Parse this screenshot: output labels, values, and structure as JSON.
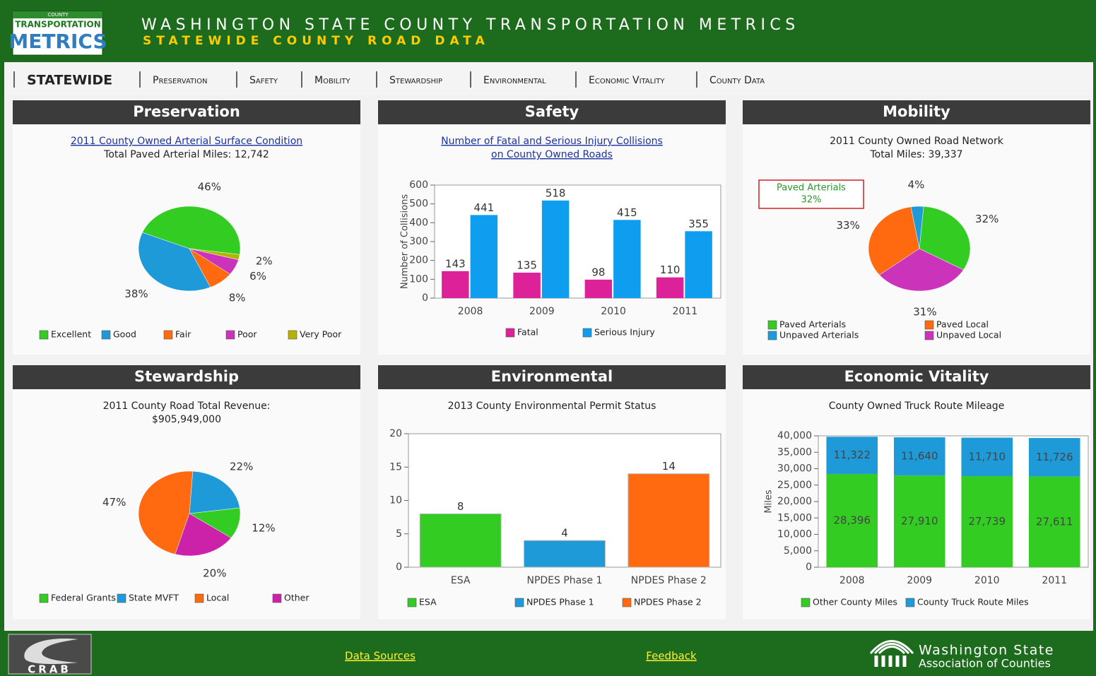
{
  "header": {
    "logo": [
      "COUNTY",
      "TRANSPORTATION",
      "METRICS"
    ],
    "title": "WASHINGTON STATE COUNTY TRANSPORTATION METRICS",
    "subtitle": "STATEWIDE COUNTY ROAD DATA"
  },
  "nav": [
    "STATEWIDE",
    "Preservation",
    "Safety",
    "Mobility",
    "Stewardship",
    "Environmental",
    "Economic Vitality",
    "County Data"
  ],
  "panels": [
    {
      "title": "Preservation",
      "chart": {
        "type": "pie",
        "link": true,
        "title": [
          "2011 County Owned Arterial Surface Condition"
        ],
        "subtitle": "Total Paved Arterial Miles: 12,742",
        "categories": [
          "Excellent",
          "Good",
          "Fair",
          "Poor",
          "Very Poor"
        ],
        "values": [
          46,
          38,
          8,
          6,
          2
        ],
        "value_labels": [
          "46%",
          "38%",
          "8%",
          "6%",
          "2%"
        ],
        "colors": [
          "#33cc22",
          "#1f9ad8",
          "#ff6a10",
          "#cc33bb",
          "#b3b300"
        ]
      }
    },
    {
      "title": "Safety",
      "chart": {
        "type": "bar",
        "link": true,
        "title": [
          "Number of Fatal and Serious Injury Collisions",
          "on County Owned Roads"
        ],
        "categories": [
          "2008",
          "2009",
          "2010",
          "2011"
        ],
        "ylabel": "Number of Collisions",
        "ylim": [
          0,
          600
        ],
        "yticks": [
          0,
          100,
          200,
          300,
          400,
          500,
          600
        ],
        "grid": false,
        "series": [
          {
            "name": "Fatal",
            "color": "#dd2299",
            "values": [
              143,
              135,
              98,
              110
            ]
          },
          {
            "name": "Serious Injury",
            "color": "#0f9df0",
            "values": [
              441,
              518,
              415,
              355
            ]
          }
        ]
      }
    },
    {
      "title": "Mobility",
      "chart": {
        "type": "pie",
        "link": false,
        "title": [
          "2011 County Owned Road Network"
        ],
        "subtitle": "Total Miles: 39,337",
        "categories": [
          "Paved Arterials",
          "Unpaved Arterials",
          "Paved Local",
          "Unpaved Local"
        ],
        "values": [
          32,
          4,
          33,
          31
        ],
        "value_labels": [
          "32%",
          "4%",
          "33%",
          "31%"
        ],
        "colors": [
          "#33cc22",
          "#1f9ad8",
          "#ff6a10",
          "#cc33bb"
        ],
        "annotation": [
          "Paved Arterials",
          "32%"
        ]
      }
    },
    {
      "title": "Stewardship",
      "chart": {
        "type": "pie",
        "link": false,
        "title": [
          "2011 County Road Total Revenue:"
        ],
        "subtitle": "$905,949,000",
        "categories": [
          "Federal Grants",
          "State MVFT",
          "Local",
          "Other"
        ],
        "values": [
          12,
          22,
          47,
          20
        ],
        "value_labels": [
          "12%",
          "22%",
          "47%",
          "20%"
        ],
        "colors": [
          "#33cc22",
          "#1f9ad8",
          "#ff6a10",
          "#cc22aa"
        ]
      }
    },
    {
      "title": "Environmental",
      "chart": {
        "type": "bar",
        "link": false,
        "title": [
          "2013 County Environmental Permit Status"
        ],
        "categories": [
          "ESA",
          "NPDES Phase 1",
          "NPDES Phase 2"
        ],
        "values": [
          8,
          4,
          14
        ],
        "colors": [
          "#33cc22",
          "#1f9ad8",
          "#ff6a10"
        ],
        "ylim": [
          0,
          20
        ],
        "yticks": [
          0,
          5,
          10,
          15,
          20
        ],
        "grid": false
      }
    },
    {
      "title": "Economic Vitality",
      "chart": {
        "type": "stacked_bar",
        "link": false,
        "title": [
          "County Owned Truck Route Mileage"
        ],
        "categories": [
          "2008",
          "2009",
          "2010",
          "2011"
        ],
        "ylabel": "Miles",
        "ylim": [
          0,
          40000
        ],
        "yticks": [
          0,
          {
            "value": 5000,
            "label": "5,000"
          },
          {
            "value": 10000,
            "label": "10,000"
          },
          {
            "value": 15000,
            "label": "15,000"
          },
          {
            "value": 20000,
            "label": "20,000"
          },
          {
            "value": 25000,
            "label": "25,000"
          },
          {
            "value": 30000,
            "label": "30,000"
          },
          {
            "value": 35000,
            "label": "35,000"
          },
          {
            "value": 40000,
            "label": "40,000"
          }
        ],
        "grid": false,
        "series": [
          {
            "name": "Other County Miles",
            "color": "#33cc22",
            "values": [
              28396,
              27910,
              27739,
              27611
            ],
            "value_labels": [
              "28,396",
              "27,910",
              "27,739",
              "27,611"
            ]
          },
          {
            "name": "County Truck Route Miles",
            "color": "#1f9ad8",
            "values": [
              11322,
              11640,
              11710,
              11726
            ],
            "value_labels": [
              "11,322",
              "11,640",
              "11,710",
              "11,726"
            ]
          }
        ]
      }
    }
  ],
  "footer": {
    "links": [
      "Data Sources",
      "Feedback"
    ],
    "crab": "CRAB",
    "org": [
      "Washington State",
      "Association of Counties"
    ]
  }
}
